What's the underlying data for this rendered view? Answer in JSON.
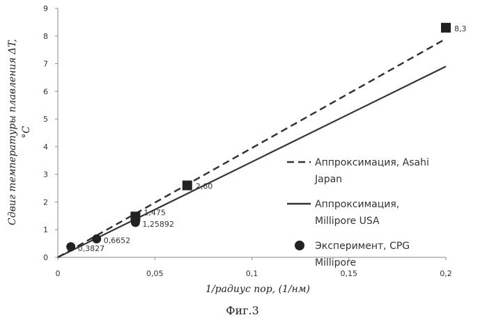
{
  "chart_data": {
    "type": "scatter",
    "xlabel": "1/радиус пор, (1/нм)",
    "ylabel_line1": "Сдвиг температуры плавления ΔT,",
    "ylabel_line2": "°C",
    "xlim": [
      0,
      0.2
    ],
    "ylim": [
      0,
      9
    ],
    "x_ticks": [
      "0",
      "0,05",
      "0,1",
      "0,15",
      "0,2"
    ],
    "x_tick_values": [
      0,
      0.05,
      0.1,
      0.15,
      0.2
    ],
    "y_ticks": [
      "0",
      "1",
      "2",
      "3",
      "4",
      "5",
      "6",
      "7",
      "8",
      "9"
    ],
    "y_tick_values": [
      0,
      1,
      2,
      3,
      4,
      5,
      6,
      7,
      8,
      9
    ],
    "grid": false,
    "legend_position": "right",
    "series": [
      {
        "name": "Аппроксимация, Asahi Japan",
        "legend_lines": [
          "Аппроксимация, Asahi",
          "Japan"
        ],
        "kind": "line",
        "style": "dashed",
        "color": "#333333",
        "x": [
          0,
          0.2
        ],
        "y": [
          0,
          7.9
        ]
      },
      {
        "name": "Аппроксимация, Millipore USA",
        "legend_lines": [
          "Аппроксимация,",
          "Millipore USA"
        ],
        "kind": "line",
        "style": "solid",
        "color": "#333333",
        "x": [
          0,
          0.2
        ],
        "y": [
          0,
          6.9
        ]
      },
      {
        "name": "Эксперимент, CPG Millipore",
        "legend_lines": [
          "Эксперимент, CPG",
          "Millipore"
        ],
        "kind": "scatter",
        "marker": "circle",
        "color": "#222222",
        "x": [
          0.0067,
          0.02,
          0.04
        ],
        "y": [
          0.3827,
          0.6652,
          1.25892
        ],
        "labels": [
          "0,3827",
          "0,6652",
          "1,25892"
        ]
      },
      {
        "name": "",
        "kind": "scatter",
        "marker": "square",
        "color": "#222222",
        "x": [
          0.04,
          0.0667,
          0.2
        ],
        "y": [
          1.475,
          2.6,
          8.3
        ],
        "labels": [
          "1,475",
          "2,60",
          "8,3"
        ]
      }
    ]
  },
  "caption": "Фиг.3"
}
